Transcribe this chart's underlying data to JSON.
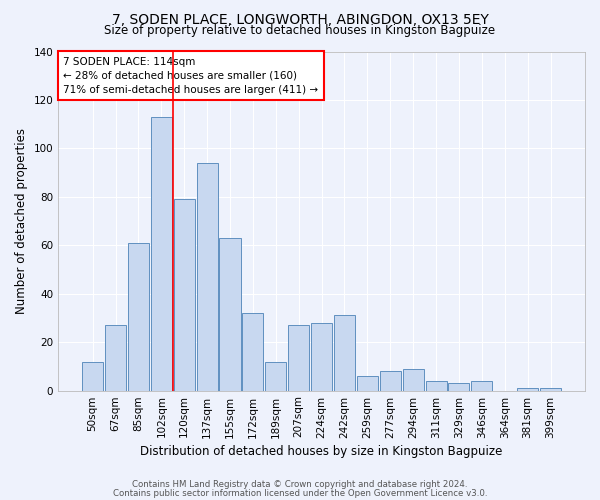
{
  "title1": "7, SODEN PLACE, LONGWORTH, ABINGDON, OX13 5EY",
  "title2": "Size of property relative to detached houses in Kingston Bagpuize",
  "xlabel": "Distribution of detached houses by size in Kingston Bagpuize",
  "ylabel": "Number of detached properties",
  "bar_labels": [
    "50sqm",
    "67sqm",
    "85sqm",
    "102sqm",
    "120sqm",
    "137sqm",
    "155sqm",
    "172sqm",
    "189sqm",
    "207sqm",
    "224sqm",
    "242sqm",
    "259sqm",
    "277sqm",
    "294sqm",
    "311sqm",
    "329sqm",
    "346sqm",
    "364sqm",
    "381sqm",
    "399sqm"
  ],
  "bar_values": [
    12,
    27,
    61,
    113,
    79,
    94,
    63,
    32,
    12,
    27,
    28,
    31,
    6,
    8,
    9,
    4,
    3,
    4,
    0,
    1,
    1
  ],
  "bar_color": "#c8d8f0",
  "bar_edge_color": "#6090c0",
  "bg_color": "#eef2fc",
  "grid_color": "#ffffff",
  "vline_color": "red",
  "vline_pos": 3.5,
  "annotation_text": "7 SODEN PLACE: 114sqm\n← 28% of detached houses are smaller (160)\n71% of semi-detached houses are larger (411) →",
  "footer1": "Contains HM Land Registry data © Crown copyright and database right 2024.",
  "footer2": "Contains public sector information licensed under the Open Government Licence v3.0.",
  "ylim": [
    0,
    140
  ],
  "yticks": [
    0,
    20,
    40,
    60,
    80,
    100,
    120,
    140
  ]
}
